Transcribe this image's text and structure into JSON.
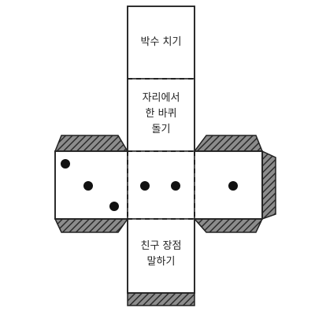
{
  "cube_net": {
    "faces": {
      "top": {
        "lines": [
          "박수 치기"
        ]
      },
      "upper_middle": {
        "lines": [
          "자리에서",
          "한 바퀴",
          "돌기"
        ]
      },
      "left": {
        "dots": 3
      },
      "center": {
        "dots": 2
      },
      "right": {
        "dots": 1
      },
      "lower_middle": {
        "lines": [
          "친구 장점",
          "말하기"
        ]
      }
    },
    "colors": {
      "outline": "#222222",
      "face_fill": "#ffffff",
      "tab_fill": "#8c8c8c",
      "tab_hatch": "#2b2b2b",
      "dot": "#111111"
    }
  }
}
